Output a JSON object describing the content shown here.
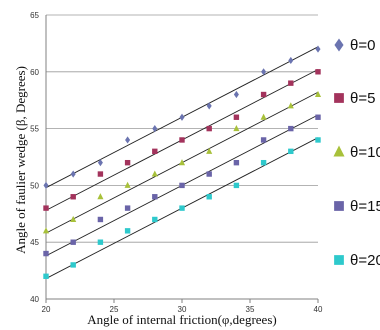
{
  "chart_data": {
    "type": "scatter",
    "xlabel": "Angle of internal friction(φ,degrees)",
    "ylabel": "Angle of faulier wedge (β, Degrees)",
    "xlim": [
      20,
      40
    ],
    "ylim": [
      40,
      65
    ],
    "x_ticks": [
      "20",
      "25",
      "30",
      "35",
      "40"
    ],
    "y_ticks": [
      "40",
      "45",
      "50",
      "55",
      "60",
      "65"
    ],
    "grid": "horizontal",
    "legend_position": "right",
    "series": [
      {
        "name": "θ=0",
        "color": "#6b74b0",
        "marker": "diamond",
        "points": [
          [
            20,
            50
          ],
          [
            22,
            51
          ],
          [
            24,
            52
          ],
          [
            26,
            54
          ],
          [
            28,
            55
          ],
          [
            30,
            56
          ],
          [
            32,
            57
          ],
          [
            34,
            58
          ],
          [
            36,
            60
          ],
          [
            38,
            61
          ],
          [
            40,
            62
          ]
        ]
      },
      {
        "name": "θ=5",
        "color": "#a3335c",
        "marker": "square",
        "points": [
          [
            20,
            48
          ],
          [
            22,
            49
          ],
          [
            24,
            51
          ],
          [
            26,
            52
          ],
          [
            28,
            53
          ],
          [
            30,
            54
          ],
          [
            32,
            55
          ],
          [
            34,
            56
          ],
          [
            36,
            58
          ],
          [
            38,
            59
          ],
          [
            40,
            60
          ]
        ]
      },
      {
        "name": "θ=10",
        "color": "#a8c13a",
        "marker": "triangle",
        "points": [
          [
            20,
            46
          ],
          [
            22,
            47
          ],
          [
            24,
            49
          ],
          [
            26,
            50
          ],
          [
            28,
            51
          ],
          [
            30,
            52
          ],
          [
            32,
            53
          ],
          [
            34,
            55
          ],
          [
            36,
            56
          ],
          [
            38,
            57
          ],
          [
            40,
            58
          ]
        ]
      },
      {
        "name": "θ=15",
        "color": "#6a64a8",
        "marker": "square",
        "points": [
          [
            20,
            44
          ],
          [
            22,
            45
          ],
          [
            24,
            47
          ],
          [
            26,
            48
          ],
          [
            28,
            49
          ],
          [
            30,
            50
          ],
          [
            32,
            51
          ],
          [
            34,
            52
          ],
          [
            36,
            54
          ],
          [
            38,
            55
          ],
          [
            40,
            56
          ]
        ]
      },
      {
        "name": "θ=20",
        "color": "#2ec9cc",
        "marker": "square",
        "points": [
          [
            20,
            42
          ],
          [
            22,
            43
          ],
          [
            24,
            45
          ],
          [
            26,
            46
          ],
          [
            28,
            47
          ],
          [
            30,
            48
          ],
          [
            32,
            49
          ],
          [
            34,
            50
          ],
          [
            36,
            52
          ],
          [
            38,
            53
          ],
          [
            40,
            54
          ]
        ]
      }
    ],
    "trendlines": [
      {
        "from": [
          20,
          49.8
        ],
        "to": [
          40,
          62.2
        ]
      },
      {
        "from": [
          20,
          47.8
        ],
        "to": [
          40,
          60.2
        ]
      },
      {
        "from": [
          20,
          45.8
        ],
        "to": [
          40,
          58.2
        ]
      },
      {
        "from": [
          20,
          43.8
        ],
        "to": [
          40,
          56.2
        ]
      },
      {
        "from": [
          20,
          41.8
        ],
        "to": [
          40,
          54.2
        ]
      }
    ]
  }
}
